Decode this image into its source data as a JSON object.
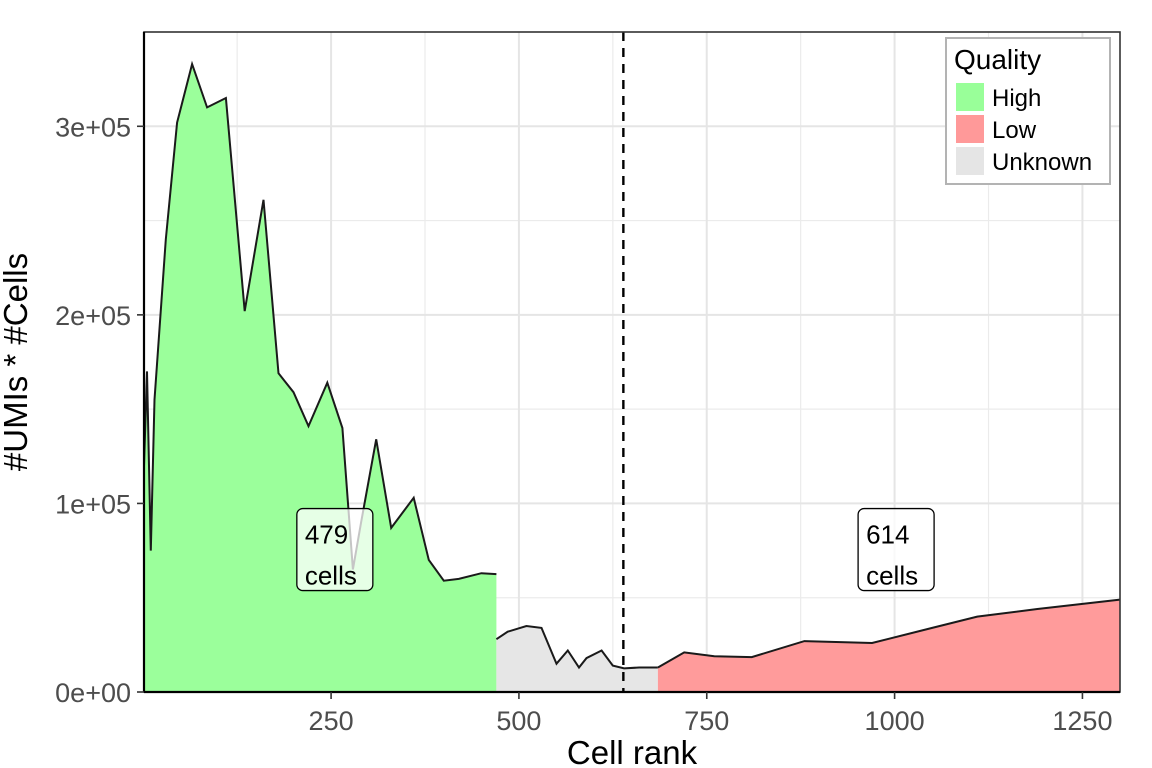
{
  "chart_data": {
    "type": "area",
    "title": "",
    "xlabel": "Cell rank",
    "ylabel": "#UMIs * #Cells",
    "xlim": [
      1,
      1300
    ],
    "ylim": [
      0,
      350000
    ],
    "xticks": [
      250,
      500,
      750,
      1000,
      1250
    ],
    "xtick_labels": [
      "250",
      "500",
      "750",
      "1000",
      "1250"
    ],
    "yticks": [
      0,
      100000,
      200000,
      300000
    ],
    "ytick_labels": [
      "0e+00",
      "1e+05",
      "2e+05",
      "3e+05"
    ],
    "grid": true,
    "threshold_x": 639,
    "legend": {
      "title": "Quality",
      "position": "top-right",
      "items": [
        {
          "label": "High",
          "color": "#99FF99"
        },
        {
          "label": "Low",
          "color": "#FF9999"
        },
        {
          "label": "Unknown",
          "color": "#E5E5E5"
        }
      ]
    },
    "series": [
      {
        "name": "High",
        "color": "#99FF99",
        "points": [
          [
            1,
            0
          ],
          [
            1,
            120000
          ],
          [
            5,
            170000
          ],
          [
            10,
            75000
          ],
          [
            15,
            155000
          ],
          [
            30,
            240000
          ],
          [
            45,
            302000
          ],
          [
            65,
            333000
          ],
          [
            85,
            310000
          ],
          [
            110,
            315000
          ],
          [
            135,
            202000
          ],
          [
            160,
            261000
          ],
          [
            180,
            169000
          ],
          [
            200,
            159000
          ],
          [
            220,
            141000
          ],
          [
            245,
            164000
          ],
          [
            265,
            140000
          ],
          [
            279,
            65000
          ],
          [
            290,
            90000
          ],
          [
            310,
            134000
          ],
          [
            330,
            87000
          ],
          [
            360,
            103000
          ],
          [
            380,
            70000
          ],
          [
            400,
            59000
          ],
          [
            420,
            60000
          ],
          [
            450,
            63000
          ],
          [
            470,
            62500
          ],
          [
            470,
            0
          ]
        ]
      },
      {
        "name": "Unknown",
        "color": "#E5E5E5",
        "points": [
          [
            470,
            0
          ],
          [
            470,
            28000
          ],
          [
            485,
            32000
          ],
          [
            510,
            35000
          ],
          [
            530,
            34000
          ],
          [
            550,
            15000
          ],
          [
            565,
            22000
          ],
          [
            580,
            13000
          ],
          [
            590,
            18000
          ],
          [
            610,
            22000
          ],
          [
            625,
            14000
          ],
          [
            640,
            12500
          ],
          [
            660,
            13000
          ],
          [
            685,
            13000
          ],
          [
            685,
            0
          ]
        ]
      },
      {
        "name": "Low",
        "color": "#FF9999",
        "points": [
          [
            685,
            0
          ],
          [
            685,
            13000
          ],
          [
            720,
            21000
          ],
          [
            760,
            19000
          ],
          [
            810,
            18500
          ],
          [
            880,
            27000
          ],
          [
            970,
            26000
          ],
          [
            1050,
            34000
          ],
          [
            1110,
            40000
          ],
          [
            1190,
            44000
          ],
          [
            1300,
            49000
          ],
          [
            1300,
            0
          ]
        ]
      }
    ],
    "annotations": [
      {
        "line1": "479",
        "line2": "cells",
        "x": 255,
        "y": 75000
      },
      {
        "line1": "614",
        "line2": "cells",
        "x": 1002,
        "y": 75000
      }
    ]
  }
}
